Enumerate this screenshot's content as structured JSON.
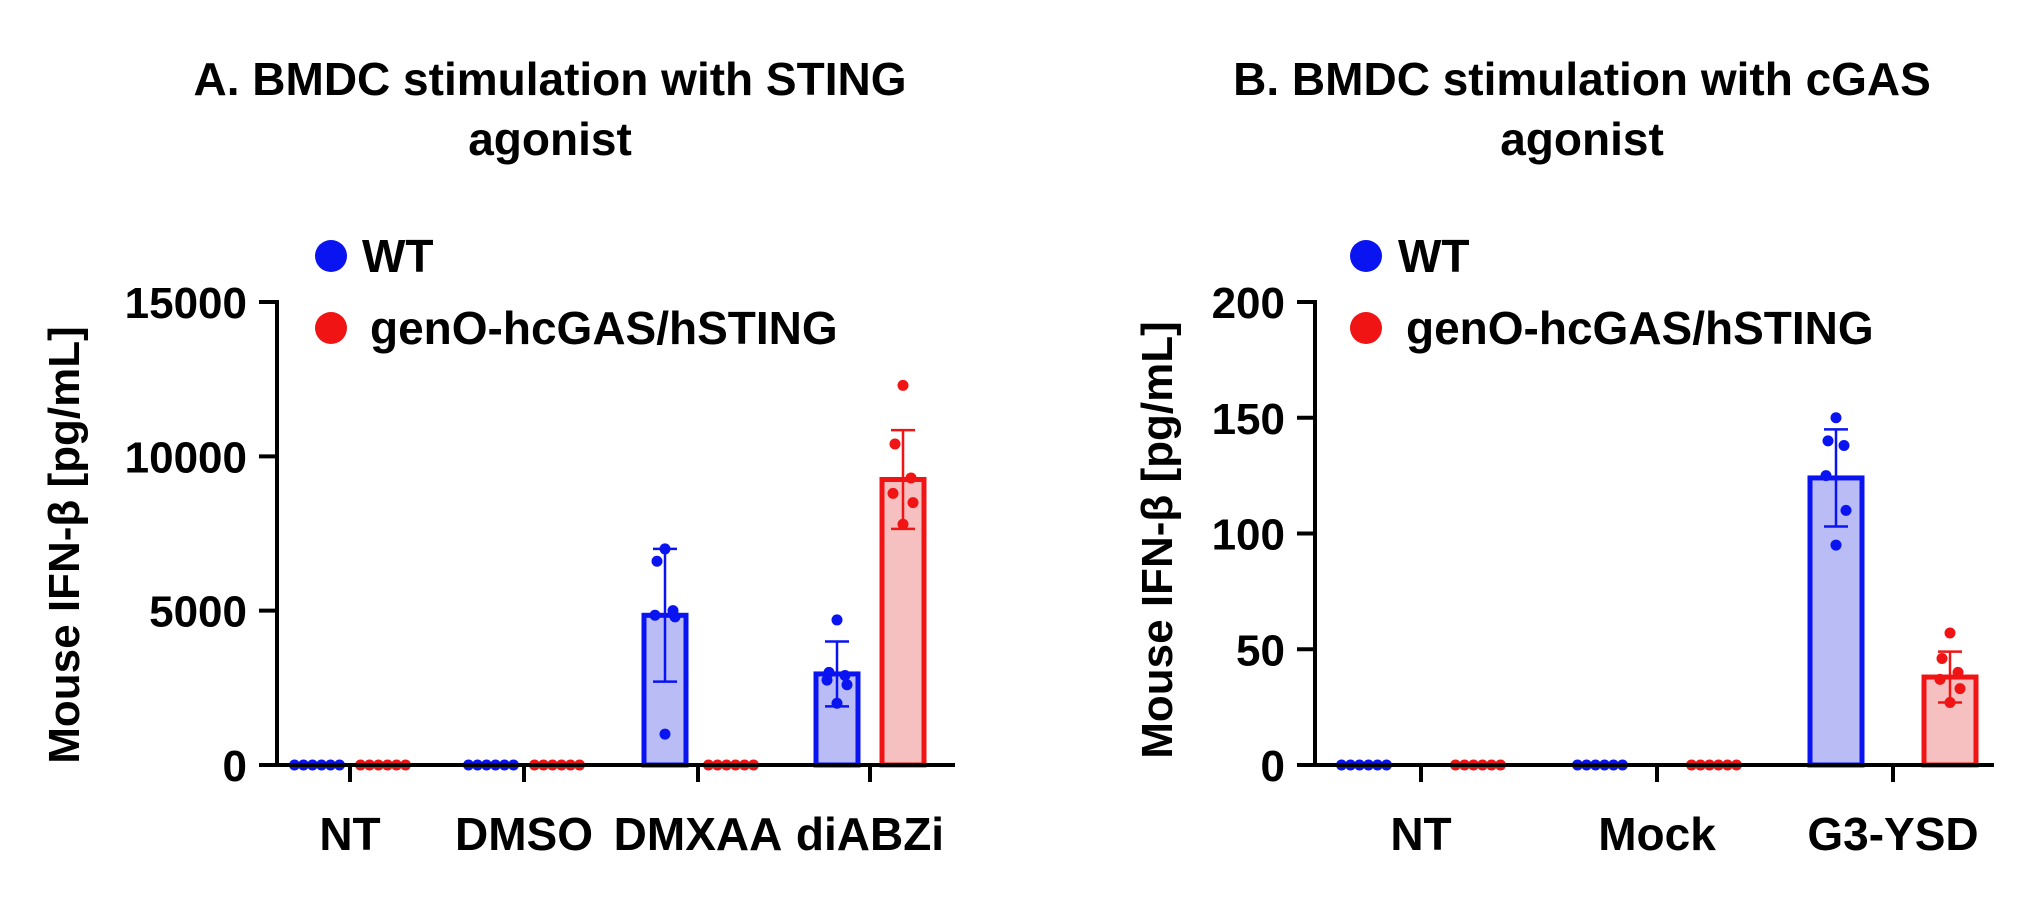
{
  "colors": {
    "wt": "#0a14f0",
    "wt_fill": "#babcf6",
    "mut": "#f01414",
    "mut_fill": "#f6c0c0",
    "axis": "#000000"
  },
  "chart_data": [
    {
      "type": "bar",
      "title": "A. BMDC stimulation with STING agonist",
      "title_lines": [
        "A. BMDC stimulation with STING",
        "agonist"
      ],
      "xlabel": "",
      "ylabel": "Mouse IFN-β [pg/mL]",
      "ylim": [
        0,
        15000
      ],
      "yticks": [
        0,
        5000,
        10000,
        15000
      ],
      "ytick_labels": [
        "0",
        "5000",
        "10000",
        "15000"
      ],
      "legend_position": "top-left",
      "categories": [
        "NT",
        "DMSO",
        "DMXAA",
        "diABZi"
      ],
      "series": [
        {
          "name": "WT",
          "color_key": "wt",
          "values": [
            0,
            0,
            4850,
            2950
          ],
          "error": [
            0,
            0,
            2150,
            1050
          ],
          "points": [
            [
              0,
              0,
              0,
              0,
              0,
              0
            ],
            [
              0,
              0,
              0,
              0,
              0,
              0
            ],
            [
              7000,
              6600,
              5000,
              4850,
              4800,
              1000
            ],
            [
              4700,
              3000,
              2900,
              2750,
              2600,
              2000
            ]
          ]
        },
        {
          "name": "genO-hcGAS/hSTING",
          "color_key": "mut",
          "values": [
            0,
            0,
            0,
            9250
          ],
          "error": [
            0,
            0,
            0,
            1600
          ],
          "points": [
            [
              0,
              0,
              0,
              0,
              0,
              0
            ],
            [
              0,
              0,
              0,
              0,
              0,
              0
            ],
            [
              0,
              0,
              0,
              0,
              0,
              0
            ],
            [
              12300,
              10400,
              9300,
              8800,
              8500,
              7800
            ]
          ]
        }
      ]
    },
    {
      "type": "bar",
      "title": "B. BMDC stimulation with cGAS agonist",
      "title_lines": [
        "B. BMDC stimulation with cGAS",
        "agonist"
      ],
      "xlabel": "",
      "ylabel": "Mouse IFN-β [pg/mL]",
      "ylim": [
        0,
        200
      ],
      "yticks": [
        0,
        50,
        100,
        150,
        200
      ],
      "ytick_labels": [
        "0",
        "50",
        "100",
        "150",
        "200"
      ],
      "legend_position": "top-left",
      "categories": [
        "NT",
        "Mock",
        "G3-YSD"
      ],
      "series": [
        {
          "name": "WT",
          "color_key": "wt",
          "values": [
            0,
            0,
            124
          ],
          "error": [
            0,
            0,
            21
          ],
          "points": [
            [
              0,
              0,
              0,
              0,
              0,
              0
            ],
            [
              0,
              0,
              0,
              0,
              0,
              0
            ],
            [
              150,
              140,
              138,
              125,
              110,
              95
            ]
          ]
        },
        {
          "name": "genO-hcGAS/hSTING",
          "color_key": "mut",
          "values": [
            0,
            0,
            38
          ],
          "error": [
            0,
            0,
            11
          ],
          "points": [
            [
              0,
              0,
              0,
              0,
              0,
              0
            ],
            [
              0,
              0,
              0,
              0,
              0,
              0
            ],
            [
              57,
              46,
              40,
              37,
              33,
              27
            ]
          ]
        }
      ]
    }
  ]
}
